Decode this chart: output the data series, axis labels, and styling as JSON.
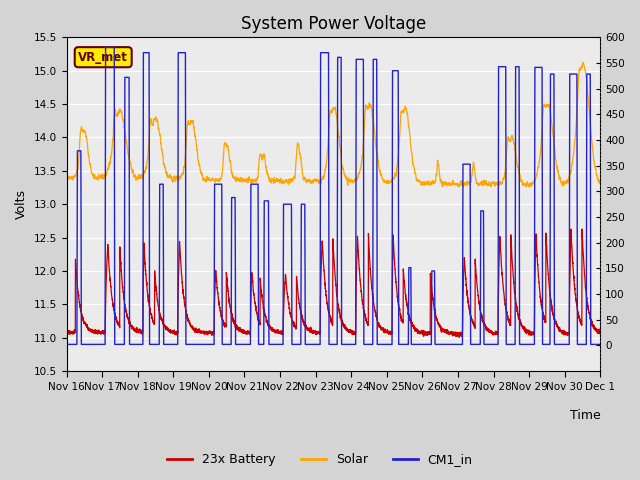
{
  "title": "System Power Voltage",
  "ylabel_left": "Volts",
  "xlabel": "Time",
  "ylim_left": [
    10.5,
    15.5
  ],
  "ylim_right": [
    -50,
    600
  ],
  "yticks_left": [
    10.5,
    11.0,
    11.5,
    12.0,
    12.5,
    13.0,
    13.5,
    14.0,
    14.5,
    15.0,
    15.5
  ],
  "yticks_right": [
    0,
    50,
    100,
    150,
    200,
    250,
    300,
    350,
    400,
    450,
    500,
    550,
    600
  ],
  "xtick_labels": [
    "Nov 16",
    "Nov 17",
    "Nov 18",
    "Nov 19",
    "Nov 20",
    "Nov 21",
    "Nov 22",
    "Nov 23",
    "Nov 24",
    "Nov 25",
    "Nov 26",
    "Nov 27",
    "Nov 28",
    "Nov 29",
    "Nov 30",
    "Dec 1"
  ],
  "figure_bg": "#d4d4d4",
  "axes_bg": "#e8e8e8",
  "color_battery": "#cc0000",
  "color_solar": "#ffa500",
  "color_cm1": "#2222cc",
  "vrmet_box_facecolor": "#ffee00",
  "vrmet_box_edgecolor": "#660000",
  "vrmet_text_color": "#660000",
  "legend_battery": "23x Battery",
  "legend_solar": "Solar",
  "legend_cm1": "CM1_in",
  "vrmet_label": "VR_met",
  "title_fontsize": 12,
  "label_fontsize": 9,
  "tick_fontsize": 7.5,
  "legend_fontsize": 9,
  "total_hours": 360,
  "cm1_baseline": 10.92,
  "battery_baseline": 11.05
}
